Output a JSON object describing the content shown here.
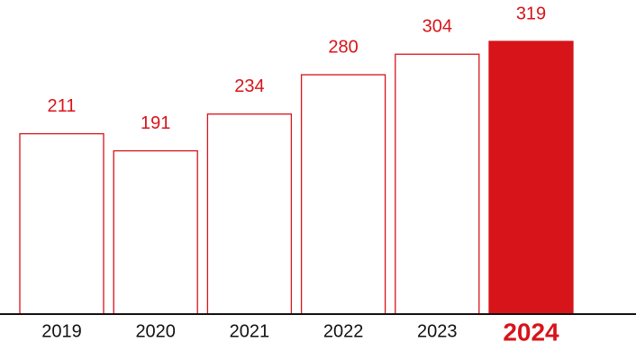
{
  "chart_data": {
    "type": "bar",
    "categories": [
      "2019",
      "2020",
      "2021",
      "2022",
      "2023",
      "2024"
    ],
    "values": [
      211,
      191,
      234,
      280,
      304,
      319
    ],
    "color": "#d7141a",
    "bar_fills": [
      "#ffffff",
      "#ffffff",
      "#ffffff",
      "#ffffff",
      "#ffffff",
      "#d7141a"
    ]
  }
}
